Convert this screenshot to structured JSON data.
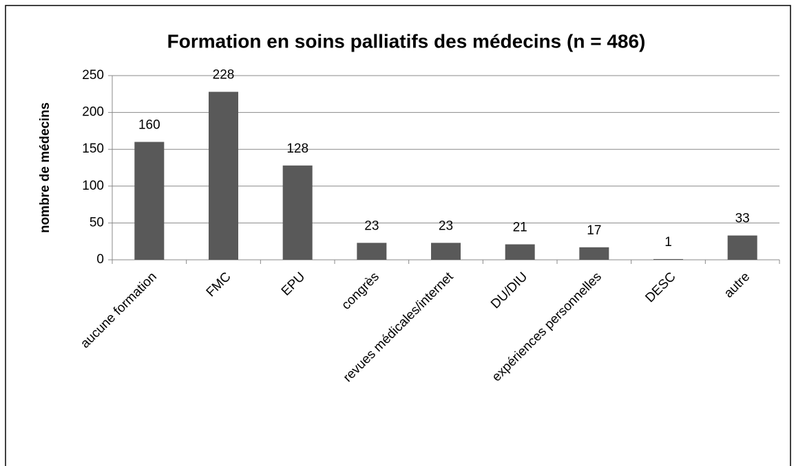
{
  "chart_data": {
    "type": "bar",
    "title": "Formation en soins palliatifs des médecins (n = 486)",
    "y_label": "nombre de médecins",
    "categories": [
      "aucune formation",
      "FMC",
      "EPU",
      "congrès",
      "revues médicales/internet",
      "DU/DIU",
      "expériences personnelles",
      "DESC",
      "autre"
    ],
    "values": [
      160,
      228,
      128,
      23,
      23,
      21,
      17,
      1,
      33
    ],
    "color": "#595959",
    "ylim": [
      0,
      250
    ],
    "yticks": [
      0,
      50,
      100,
      150,
      200,
      250
    ],
    "grid": true
  }
}
